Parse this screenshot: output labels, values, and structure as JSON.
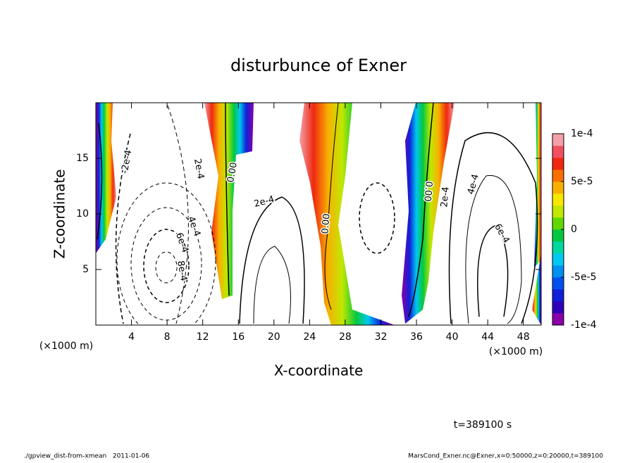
{
  "chart_data": {
    "type": "contour",
    "title": "disturbunce of Exner",
    "x_label": "X-coordinate",
    "y_label": "Z-coordinate",
    "x_unit": "(×1000 m)",
    "y_unit": "(×1000 m)",
    "time_label": "t=389100 s",
    "footer_left": "./gpview_dist-from-xmean   2011-01-06",
    "footer_right": "MarsCond_Exner.nc@Exner,x=0:50000,z=0:20000,t=389100",
    "xlim": [
      0,
      50
    ],
    "ylim": [
      0,
      20
    ],
    "xticks": [
      4,
      8,
      12,
      16,
      20,
      24,
      28,
      32,
      36,
      40,
      44,
      48
    ],
    "yticks": [
      5,
      10,
      15
    ],
    "colorbar": {
      "lim": [
        -0.0001,
        0.0001
      ],
      "ticks": [
        {
          "value": 0.0001,
          "label": "1e-4"
        },
        {
          "value": 5e-05,
          "label": "5e-5"
        },
        0,
        {
          "value": -5e-05,
          "label": "-5e-5"
        },
        {
          "value": -0.0001,
          "label": "-1e-4"
        }
      ],
      "colors": [
        "#8a00a8",
        "#3000b8",
        "#1020d8",
        "#0050f0",
        "#0090f0",
        "#00c8f0",
        "#00d8a0",
        "#00c840",
        "#60d800",
        "#c0e800",
        "#f8e800",
        "#f8b000",
        "#f87000",
        "#f02810",
        "#f05060",
        "#f4a0a8"
      ]
    },
    "contour_labels": [
      "-2e-4",
      "2e-4",
      "4e-4",
      "6e-4",
      "8e-4",
      "0.00",
      "2e-4",
      "0.00",
      "0.00",
      "2e-4",
      "4e-4",
      "6e-4"
    ]
  }
}
